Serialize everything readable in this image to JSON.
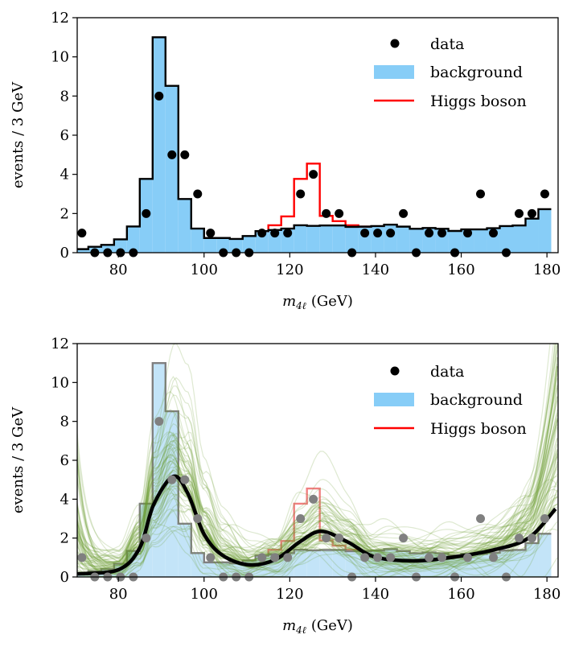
{
  "chart_data": [
    {
      "type": "bar",
      "xlabel": "m_4ℓ (GeV)",
      "xlabel_main": "m",
      "xlabel_sub": "4ℓ",
      "xlabel_unit": "(GeV)",
      "ylabel": "events / 3 GeV",
      "xlim": [
        70.4,
        182.6
      ],
      "ylim": [
        0,
        12
      ],
      "xticks": [
        "80",
        "100",
        "120",
        "140",
        "160",
        "180"
      ],
      "xtick_values": [
        80,
        100,
        120,
        140,
        160,
        180
      ],
      "yticks": [
        "0",
        "2",
        "4",
        "6",
        "8",
        "10",
        "12"
      ],
      "ytick_values": [
        0,
        2,
        4,
        6,
        8,
        10,
        12
      ],
      "grid": false,
      "legend_position": "top-right",
      "legend": [
        "data",
        "background",
        "Higgs boson"
      ],
      "bin_start": 70,
      "bin_width": 3,
      "background": [
        0.18,
        0.3,
        0.4,
        0.68,
        1.34,
        3.77,
        11.0,
        8.52,
        2.74,
        1.23,
        0.75,
        0.75,
        0.7,
        0.85,
        1.1,
        1.16,
        1.23,
        1.4,
        1.37,
        1.39,
        1.39,
        1.32,
        1.33,
        1.36,
        1.43,
        1.33,
        1.22,
        1.26,
        1.22,
        1.11,
        1.19,
        1.19,
        1.25,
        1.36,
        1.39,
        1.74,
        2.22
      ],
      "higgs_bin_start": 112,
      "higgs_total": [
        1.1,
        1.4,
        1.85,
        3.77,
        4.55,
        1.88,
        1.61,
        1.4,
        1.33
      ],
      "data": [
        1,
        0,
        0,
        0,
        0,
        2,
        8,
        5,
        5,
        3,
        1,
        0,
        0,
        0,
        1,
        1,
        1,
        3,
        4,
        2,
        2,
        0,
        1,
        1,
        1,
        2,
        0,
        1,
        1,
        0,
        1,
        3,
        1,
        0,
        2,
        2,
        3
      ],
      "colors": {
        "background": "#87cdf7",
        "outline": "#000000",
        "higgs": "#ff0000",
        "data": "#000000"
      }
    },
    {
      "type": "line",
      "xlabel": "m_4ℓ (GeV)",
      "xlabel_main": "m",
      "xlabel_sub": "4ℓ",
      "xlabel_unit": "(GeV)",
      "ylabel": "events / 3 GeV",
      "xlim": [
        70.4,
        182.6
      ],
      "ylim": [
        0,
        12
      ],
      "xticks": [
        "80",
        "100",
        "120",
        "140",
        "160",
        "180"
      ],
      "xtick_values": [
        80,
        100,
        120,
        140,
        160,
        180
      ],
      "yticks": [
        "0",
        "2",
        "4",
        "6",
        "8",
        "10",
        "12"
      ],
      "ytick_values": [
        0,
        2,
        4,
        6,
        8,
        10,
        12
      ],
      "grid": false,
      "legend_position": "top-right",
      "legend": [
        "data",
        "background",
        "Higgs boson"
      ],
      "bin_start": 70,
      "bin_width": 3,
      "background": [
        0.18,
        0.3,
        0.4,
        0.68,
        1.34,
        3.77,
        11.0,
        8.52,
        2.74,
        1.23,
        0.75,
        0.75,
        0.7,
        0.85,
        1.1,
        1.16,
        1.23,
        1.4,
        1.37,
        1.39,
        1.39,
        1.32,
        1.33,
        1.36,
        1.43,
        1.33,
        1.22,
        1.26,
        1.22,
        1.11,
        1.19,
        1.19,
        1.25,
        1.36,
        1.39,
        1.74,
        2.22
      ],
      "higgs_bin_start": 112,
      "higgs_total": [
        1.1,
        1.4,
        1.85,
        3.77,
        4.55,
        1.88,
        1.61,
        1.4,
        1.33
      ],
      "data": [
        1,
        0,
        0,
        0,
        0,
        2,
        8,
        5,
        5,
        3,
        1,
        0,
        0,
        0,
        1,
        1,
        1,
        3,
        4,
        2,
        2,
        0,
        1,
        1,
        1,
        2,
        0,
        1,
        1,
        0,
        1,
        3,
        1,
        0,
        2,
        2,
        3
      ],
      "mean_curve": {
        "x": [
          70.5,
          80,
          85,
          88.2,
          92.8,
          96.2,
          100,
          104.4,
          110.5,
          116.7,
          122.3,
          127.3,
          133.5,
          139.8,
          149,
          158.4,
          167.7,
          175.7,
          182
        ],
        "y": [
          0.16,
          0.37,
          1.5,
          3.7,
          5.17,
          4.3,
          2.2,
          1.1,
          0.62,
          0.9,
          1.8,
          2.35,
          1.8,
          1.03,
          0.83,
          1.03,
          1.4,
          2.0,
          3.5
        ]
      },
      "colors": {
        "background": "#c3e4f8",
        "outline": "#808080",
        "higgs": "#f08080",
        "data": "#808080",
        "samples": "#6b9a2e",
        "mean": "#000000"
      }
    }
  ]
}
